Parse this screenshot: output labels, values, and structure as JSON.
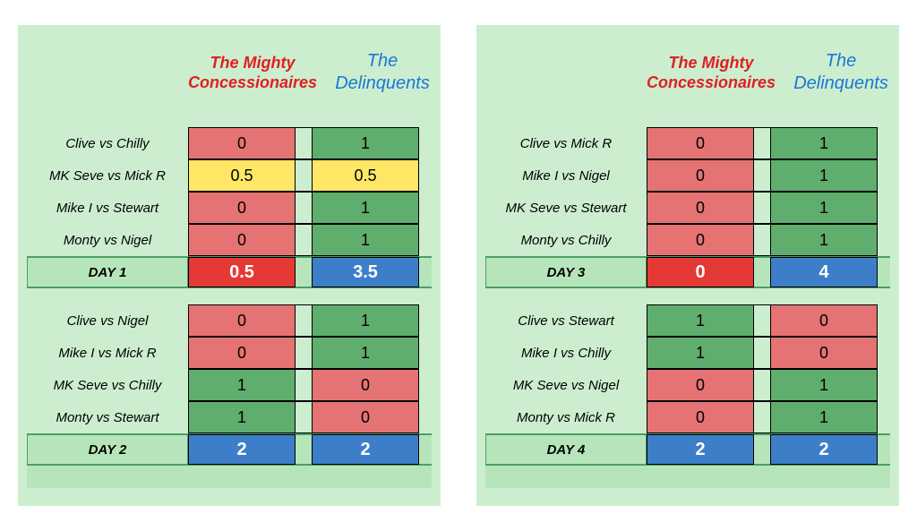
{
  "teams": {
    "mighty": "The Mighty Concessionaires",
    "delinquents": "The Delinquents"
  },
  "colors": {
    "panel_bg": "#cceecf",
    "red_header": "#e02020",
    "blue_header": "#1a77d4",
    "cell_red": "#e57373",
    "cell_green": "#5fae6d",
    "cell_yellow": "#ffe666",
    "total_red": "#e53935",
    "total_blue": "#3d7ec9",
    "border": "#000000",
    "totalbar_bg": "#b7e5bb",
    "font_family": "Comic Sans MS"
  },
  "panels": [
    {
      "days": [
        {
          "label": "DAY 1",
          "matches": [
            {
              "pair": "Clive vs Chilly",
              "a": "0",
              "b": "1",
              "ac": "cell_red",
              "bc": "cell_green"
            },
            {
              "pair": "MK Seve vs Mick R",
              "a": "0.5",
              "b": "0.5",
              "ac": "cell_yellow",
              "bc": "cell_yellow"
            },
            {
              "pair": "Mike I vs Stewart",
              "a": "0",
              "b": "1",
              "ac": "cell_red",
              "bc": "cell_green"
            },
            {
              "pair": "Monty vs Nigel",
              "a": "0",
              "b": "1",
              "ac": "cell_red",
              "bc": "cell_green"
            }
          ],
          "total": {
            "a": "0.5",
            "b": "3.5",
            "ac": "total_red",
            "bc": "total_blue"
          }
        },
        {
          "label": "DAY 2",
          "matches": [
            {
              "pair": "Clive  vs Nigel",
              "a": "0",
              "b": "1",
              "ac": "cell_red",
              "bc": "cell_green"
            },
            {
              "pair": "Mike I vs Mick R",
              "a": "0",
              "b": "1",
              "ac": "cell_red",
              "bc": "cell_green"
            },
            {
              "pair": "MK Seve vs Chilly",
              "a": "1",
              "b": "0",
              "ac": "cell_green",
              "bc": "cell_red"
            },
            {
              "pair": "Monty vs Stewart",
              "a": "1",
              "b": "0",
              "ac": "cell_green",
              "bc": "cell_red"
            }
          ],
          "total": {
            "a": "2",
            "b": "2",
            "ac": "total_blue",
            "bc": "total_blue"
          }
        }
      ]
    },
    {
      "days": [
        {
          "label": "DAY 3",
          "matches": [
            {
              "pair": "Clive vs Mick R",
              "a": "0",
              "b": "1",
              "ac": "cell_red",
              "bc": "cell_green"
            },
            {
              "pair": "Mike I  vs Nigel",
              "a": "0",
              "b": "1",
              "ac": "cell_red",
              "bc": "cell_green"
            },
            {
              "pair": "MK Seve vs Stewart",
              "a": "0",
              "b": "1",
              "ac": "cell_red",
              "bc": "cell_green"
            },
            {
              "pair": "Monty vs Chilly",
              "a": "0",
              "b": "1",
              "ac": "cell_red",
              "bc": "cell_green"
            }
          ],
          "total": {
            "a": "0",
            "b": "4",
            "ac": "total_red",
            "bc": "total_blue"
          }
        },
        {
          "label": "DAY 4",
          "matches": [
            {
              "pair": "Clive vs Stewart",
              "a": "1",
              "b": "0",
              "ac": "cell_green",
              "bc": "cell_red"
            },
            {
              "pair": "Mike I vs Chilly",
              "a": "1",
              "b": "0",
              "ac": "cell_green",
              "bc": "cell_red"
            },
            {
              "pair": "MK Seve vs Nigel",
              "a": "0",
              "b": "1",
              "ac": "cell_red",
              "bc": "cell_green"
            },
            {
              "pair": "Monty vs Mick R",
              "a": "0",
              "b": "1",
              "ac": "cell_red",
              "bc": "cell_green"
            }
          ],
          "total": {
            "a": "2",
            "b": "2",
            "ac": "total_blue",
            "bc": "total_blue"
          }
        }
      ]
    }
  ]
}
